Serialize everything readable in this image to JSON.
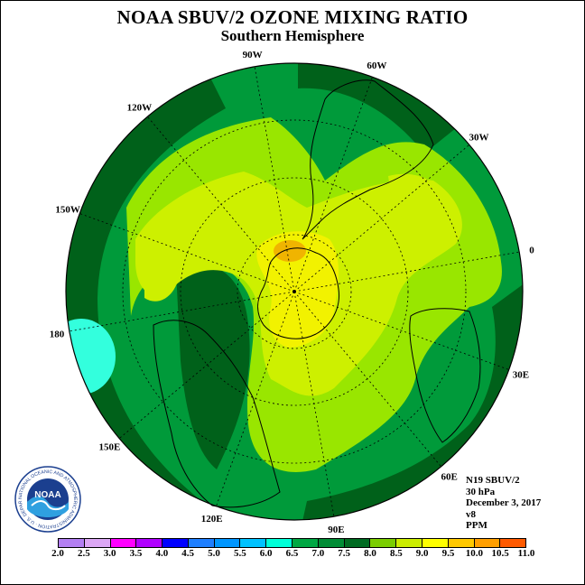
{
  "title": "NOAA SBUV/2 OZONE MIXING RATIO",
  "subtitle": "Southern Hemisphere",
  "longitude_labels": [
    {
      "text": "90W",
      "lon": -90
    },
    {
      "text": "60W",
      "lon": -60
    },
    {
      "text": "30W",
      "lon": -30
    },
    {
      "text": "0",
      "lon": 0
    },
    {
      "text": "30E",
      "lon": 30
    },
    {
      "text": "60E",
      "lon": 60
    },
    {
      "text": "90E",
      "lon": 90
    },
    {
      "text": "120E",
      "lon": 120
    },
    {
      "text": "150E",
      "lon": 150
    },
    {
      "text": "180",
      "lon": 180
    },
    {
      "text": "150W",
      "lon": -150
    },
    {
      "text": "120W",
      "lon": -120
    }
  ],
  "info": {
    "satellite": "N19 SBUV/2",
    "level": "30 hPa",
    "date": "December 3, 2017",
    "version": "v8",
    "units": "PPM"
  },
  "logo": {
    "text": "NOAA",
    "ring_text": "NATIONAL OCEANIC AND ATMOSPHERIC ADMINISTRATION · U.S. DEPARTMENT OF COMMERCE"
  },
  "colorbar": {
    "ticks": [
      "2.0",
      "2.5",
      "3.0",
      "3.5",
      "4.0",
      "4.5",
      "5.0",
      "5.5",
      "6.0",
      "6.5",
      "7.0",
      "7.5",
      "8.0",
      "8.5",
      "9.0",
      "9.5",
      "10.0",
      "10.5",
      "11.0"
    ],
    "colors": [
      "#b37ff2",
      "#dca7f5",
      "#ff00ff",
      "#b000ff",
      "#0000ff",
      "#1f7fff",
      "#0096ff",
      "#00c2ff",
      "#00ffd8",
      "#00a844",
      "#008c35",
      "#006b22",
      "#7acd00",
      "#cbed00",
      "#ffff00",
      "#ffc800",
      "#ff9f00",
      "#ff5a00",
      "#ff0000",
      "#ff0090",
      "#8b4f3a"
    ]
  },
  "map": {
    "projection": "south polar stereographic",
    "min_latitude": 0,
    "rotation_deg_of_0_lon": 0,
    "field_palette": {
      "dark_green": "#00611a",
      "green": "#009a3a",
      "light_green": "#99e600",
      "yellow_green": "#cdf000",
      "yellow": "#f2f200",
      "orange": "#f0b400",
      "cyan": "#33ffdd"
    }
  }
}
